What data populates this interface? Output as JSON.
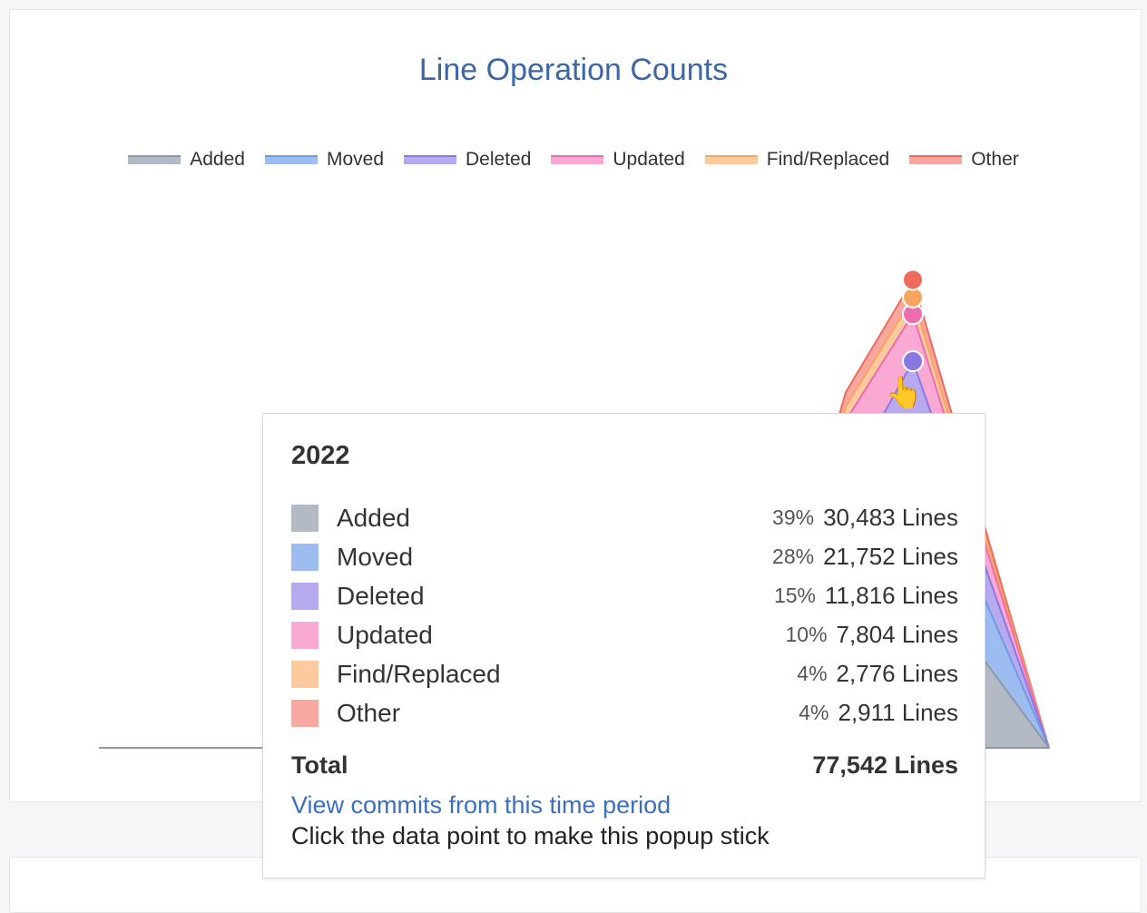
{
  "chart_data": {
    "type": "area",
    "stacked": true,
    "title": "Line Operation Counts",
    "legend_position": "top",
    "series": [
      {
        "name": "Added",
        "color": "#b3bac6",
        "stroke": "#8e98a8",
        "values": [
          0,
          0,
          0,
          0,
          0,
          0,
          20500,
          30483,
          0
        ]
      },
      {
        "name": "Moved",
        "color": "#9dbcf0",
        "stroke": "#6f9be3",
        "values": [
          0,
          0,
          0,
          0,
          0,
          0,
          15100,
          21752,
          0
        ]
      },
      {
        "name": "Deleted",
        "color": "#b7aaee",
        "stroke": "#8a78e0",
        "values": [
          0,
          0,
          0,
          0,
          0,
          0,
          8400,
          11816,
          0
        ]
      },
      {
        "name": "Updated",
        "color": "#f9a9d3",
        "stroke": "#ec6eae",
        "values": [
          0,
          0,
          0,
          0,
          0,
          0,
          10200,
          7804,
          0
        ]
      },
      {
        "name": "Find/Replaced",
        "color": "#fdc99e",
        "stroke": "#f7a55e",
        "values": [
          0,
          0,
          0,
          0,
          0,
          0,
          2300,
          2776,
          0
        ]
      },
      {
        "name": "Other",
        "color": "#f8a8a0",
        "stroke": "#ee6b5e",
        "values": [
          0,
          0,
          0,
          0,
          0,
          0,
          2400,
          2911,
          0
        ]
      }
    ],
    "ylim": [
      0,
      100000
    ],
    "grid": false
  },
  "tooltip": {
    "period": "2022",
    "rows": [
      {
        "name": "Added",
        "pct": "39%",
        "lines": "30,483 Lines",
        "color": "#b3bac6"
      },
      {
        "name": "Moved",
        "pct": "28%",
        "lines": "21,752 Lines",
        "color": "#9dbcf0"
      },
      {
        "name": "Deleted",
        "pct": "15%",
        "lines": "11,816 Lines",
        "color": "#b7aaee"
      },
      {
        "name": "Updated",
        "pct": "10%",
        "lines": "7,804 Lines",
        "color": "#f9a9d3"
      },
      {
        "name": "Find/Replaced",
        "pct": "4%",
        "lines": "2,776 Lines",
        "color": "#fdc99e"
      },
      {
        "name": "Other",
        "pct": "4%",
        "lines": "2,911 Lines",
        "color": "#f8a8a0"
      }
    ],
    "total_label": "Total",
    "total_value": "77,542 Lines",
    "link": "View commits from this time period",
    "hint": "Click the data point to make this popup stick"
  },
  "cursor_icon": "hand-pointer-icon"
}
